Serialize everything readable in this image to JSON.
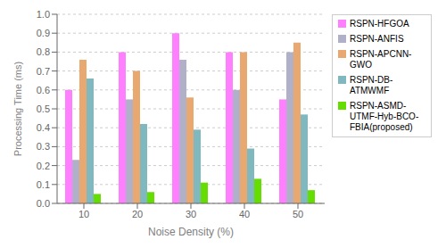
{
  "chart_data": {
    "type": "bar",
    "categories": [
      "10",
      "20",
      "30",
      "40",
      "50"
    ],
    "series": [
      {
        "name": "RSPN-HFGOA",
        "color": "#FF80FF",
        "values": [
          0.6,
          0.8,
          0.9,
          0.8,
          0.55
        ]
      },
      {
        "name": "RSPN-ANFIS",
        "color": "#B0B0C8",
        "values": [
          0.23,
          0.55,
          0.76,
          0.6,
          0.8
        ]
      },
      {
        "name": "RSPN-APCNN-\nGWO",
        "color": "#E8A870",
        "values": [
          0.76,
          0.7,
          0.56,
          0.8,
          0.85
        ]
      },
      {
        "name": "RSPN-DB-\nATMWMF",
        "color": "#80B8C0",
        "values": [
          0.66,
          0.42,
          0.39,
          0.29,
          0.47
        ]
      },
      {
        "name": "RSPN-ASMD-\nUTMF-Hyb-BCO-\nFBIA(proposed)",
        "color": "#66DD00",
        "values": [
          0.05,
          0.06,
          0.11,
          0.13,
          0.07
        ]
      }
    ],
    "xlabel": "Noise Density (%)",
    "ylabel": "Processing Time (ms)",
    "ylim": [
      0,
      1.0
    ],
    "yticks": [
      {
        "value": 0,
        "label": "0.0"
      },
      0.1,
      0.2,
      0.3,
      0.4,
      0.5,
      0.6,
      0.7,
      0.8,
      0.9,
      {
        "value": 1,
        "label": "1.0"
      }
    ],
    "grid": true,
    "legend": "right"
  }
}
